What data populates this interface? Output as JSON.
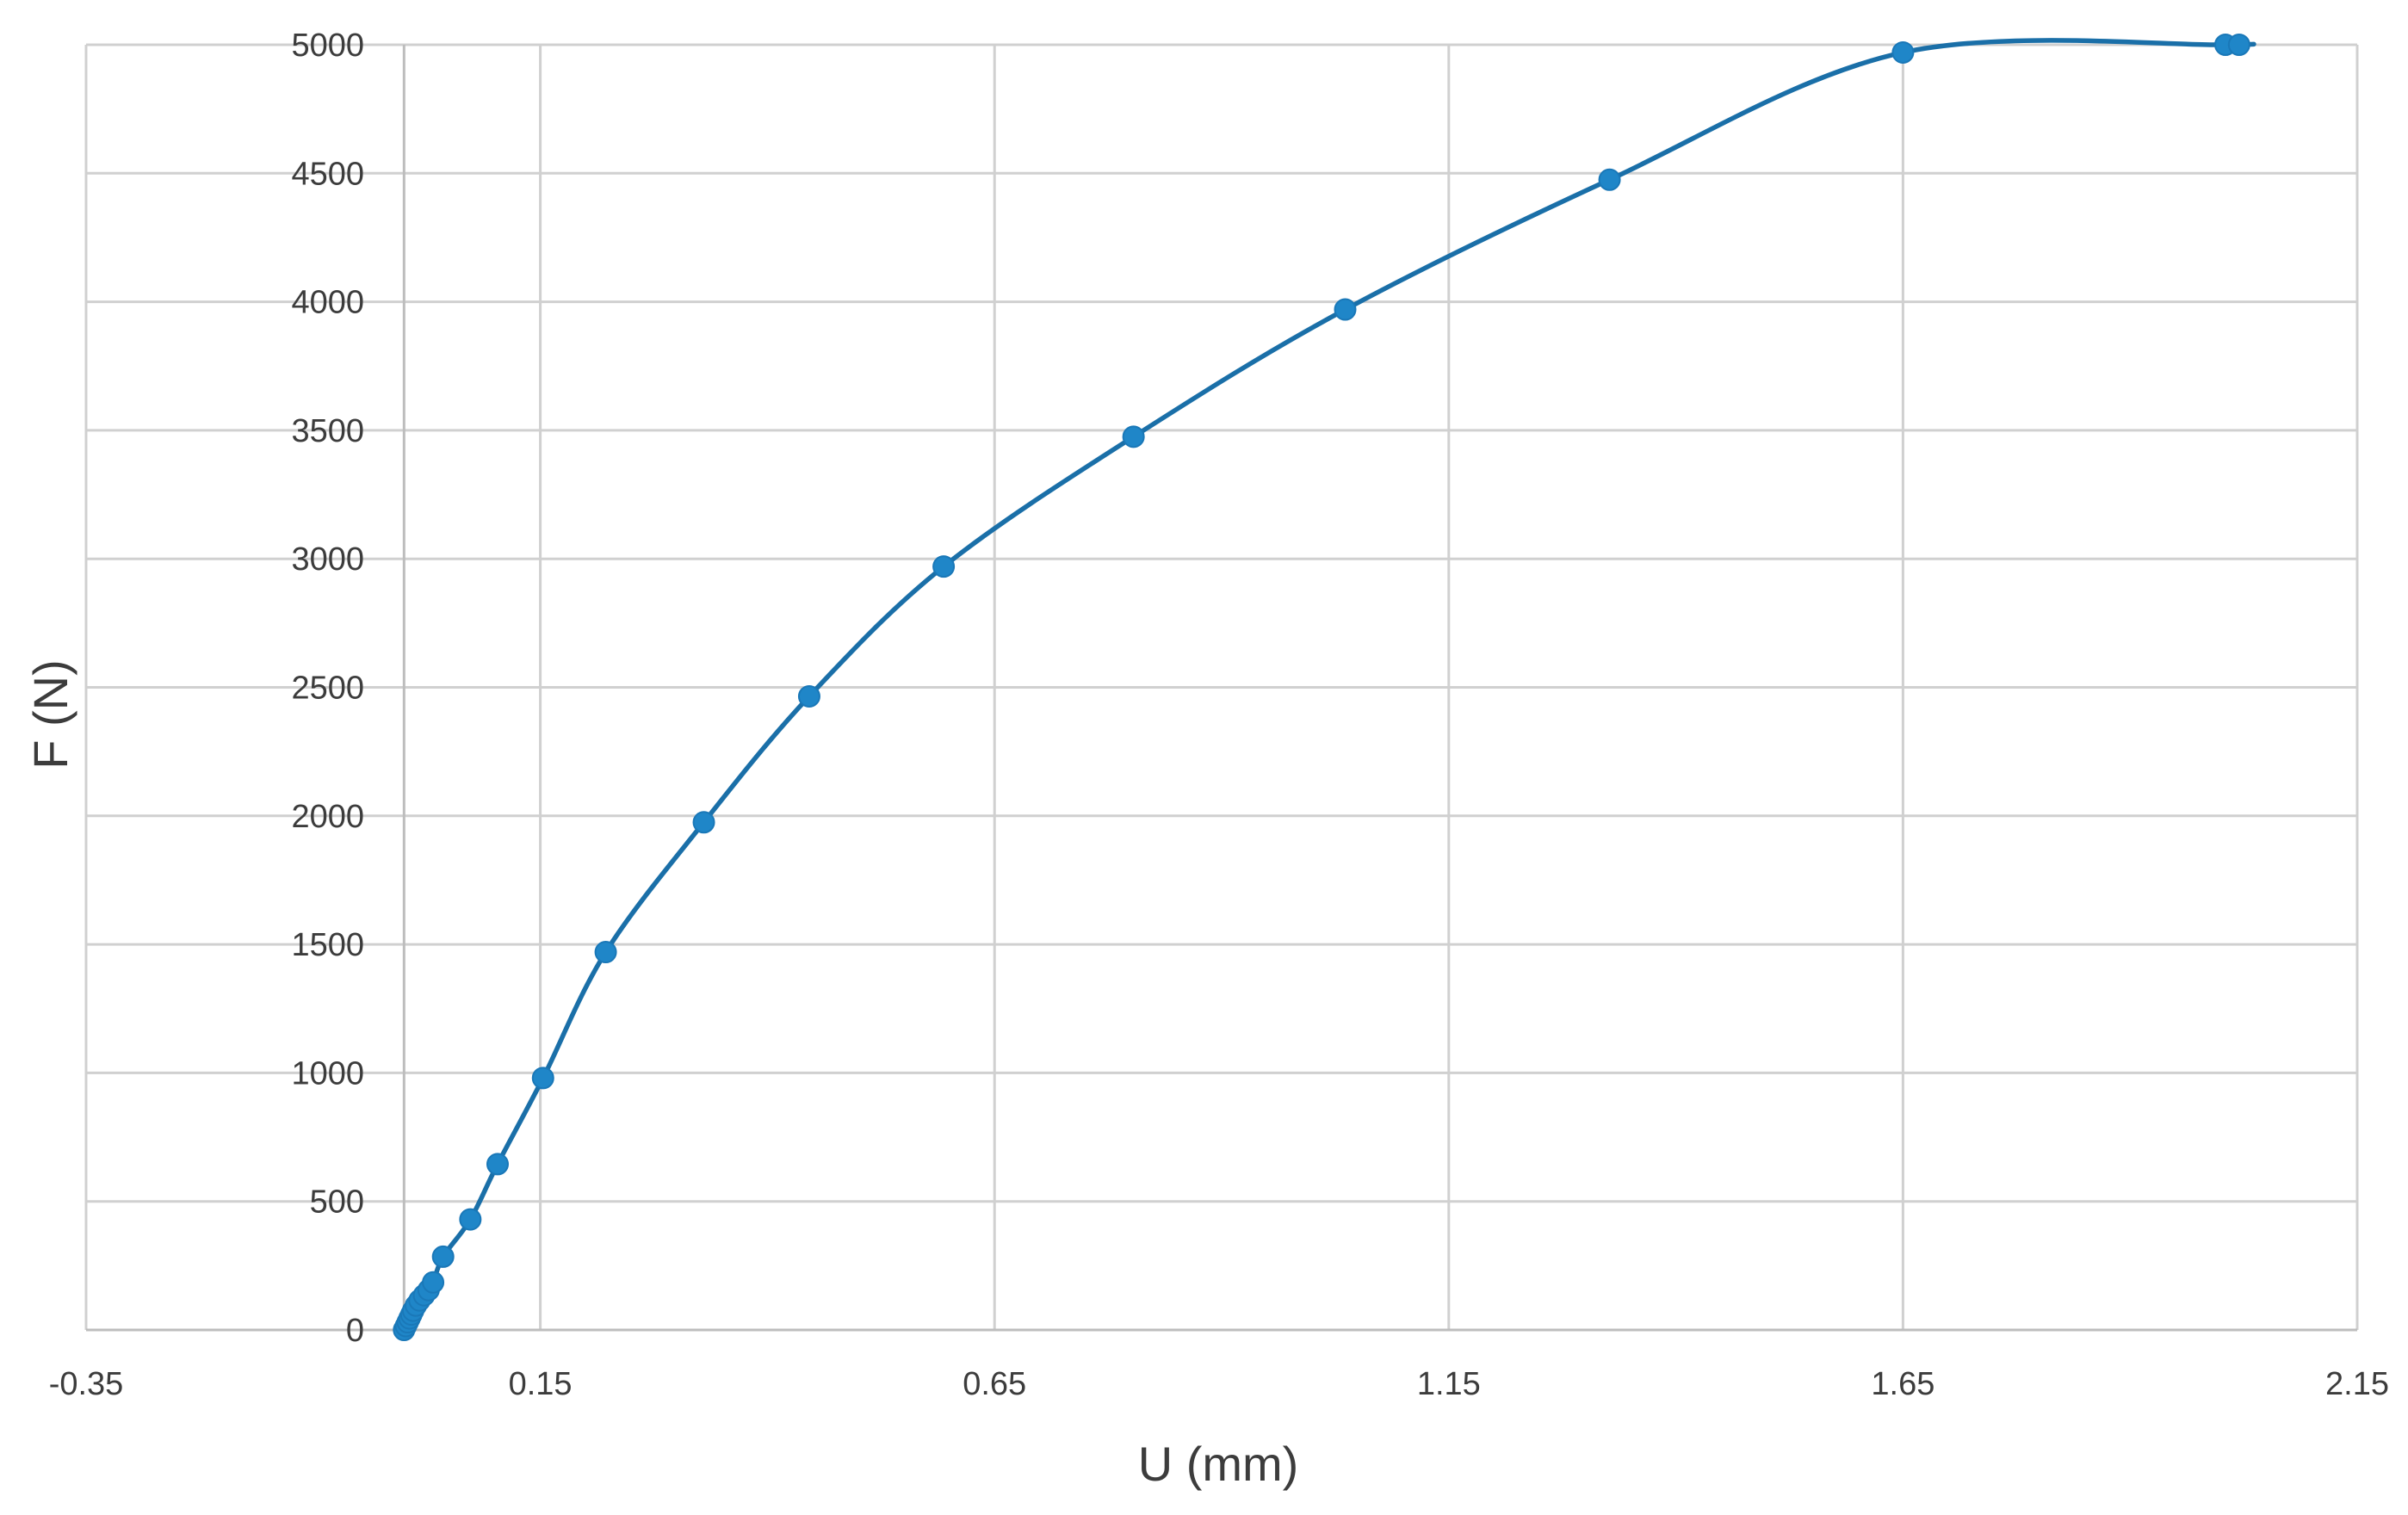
{
  "chart_data": {
    "type": "scatter",
    "title": "",
    "xlabel": "U (mm)",
    "ylabel": "F (N)",
    "xlim": [
      -0.35,
      2.15
    ],
    "ylim": [
      0,
      5000
    ],
    "x_ticks": [
      "-0.35",
      "0.15",
      "0.65",
      "1.15",
      "1.65",
      "2.15"
    ],
    "y_ticks": [
      "0",
      "500",
      "1000",
      "1500",
      "2000",
      "2500",
      "3000",
      "3500",
      "4000",
      "4500",
      "5000"
    ],
    "grid": true,
    "legend": "none",
    "line_style": "smooth line with markers",
    "color": "#1f86c8",
    "series": [
      {
        "x": [
          0.0,
          0.002,
          0.004,
          0.006,
          0.008,
          0.01,
          0.013,
          0.017,
          0.022,
          0.027,
          0.032,
          0.043,
          0.073,
          0.103,
          0.153,
          0.222,
          0.33,
          0.446,
          0.594,
          0.803,
          1.036,
          1.327,
          1.65,
          2.005,
          2.02
        ],
        "y": [
          0,
          15,
          30,
          45,
          60,
          75,
          95,
          115,
          135,
          155,
          185,
          285,
          430,
          645,
          980,
          1470,
          1975,
          2465,
          2970,
          3475,
          3970,
          4475,
          4970,
          5000,
          5000
        ]
      }
    ]
  }
}
